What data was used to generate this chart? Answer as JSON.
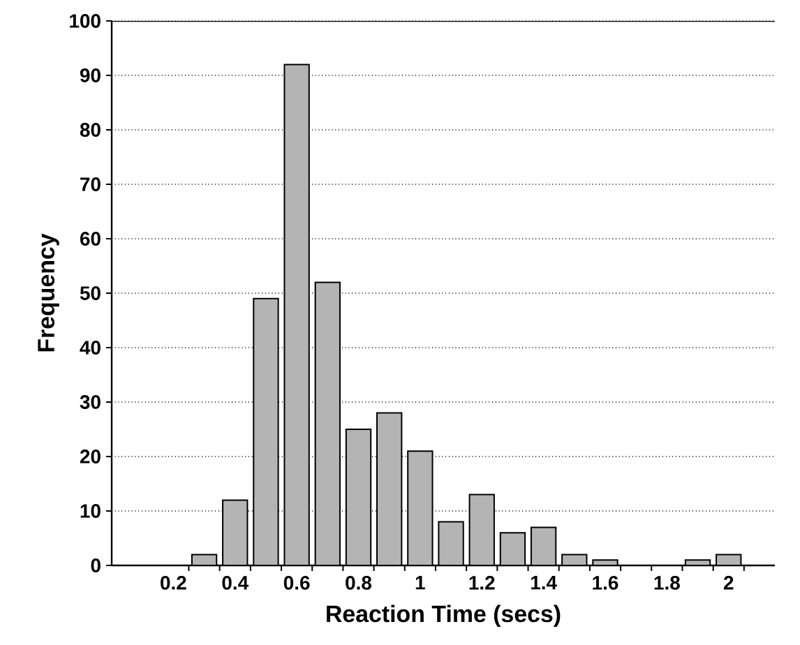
{
  "chart_data": {
    "type": "histogram",
    "xlabel": "Reaction Time (secs)",
    "ylabel": "Frequency",
    "bins": [
      0.25,
      0.35,
      0.45,
      0.55,
      0.65,
      0.75,
      0.85,
      0.95,
      1.05,
      1.15,
      1.25,
      1.35,
      1.45,
      1.55,
      1.65,
      1.75,
      1.85,
      1.95,
      2.05
    ],
    "values": [
      2,
      12,
      49,
      92,
      52,
      25,
      28,
      21,
      8,
      13,
      6,
      7,
      2,
      1,
      0,
      0,
      1,
      2
    ],
    "color": "#b4b4b4",
    "xlim": [
      0,
      2.15
    ],
    "ylim": [
      0,
      100
    ],
    "xticks": [
      0.2,
      0.4,
      0.6,
      0.8,
      1,
      1.2,
      1.4,
      1.6,
      1.8,
      2,
      {
        "value": 0.25,
        "label": null
      },
      {
        "value": 0.35,
        "label": null
      },
      {
        "value": 0.45,
        "label": null
      },
      {
        "value": 0.55,
        "label": null
      },
      {
        "value": 0.65,
        "label": null
      },
      {
        "value": 0.75,
        "label": null
      },
      {
        "value": 0.85,
        "label": null
      },
      {
        "value": 0.95,
        "label": null
      },
      {
        "value": 1.05,
        "label": null
      },
      {
        "value": 1.15,
        "label": null
      },
      {
        "value": 1.25,
        "label": null
      },
      {
        "value": 1.35,
        "label": null
      },
      {
        "value": 1.45,
        "label": null
      },
      {
        "value": 1.55,
        "label": null
      },
      {
        "value": 1.65,
        "label": null
      },
      {
        "value": 1.75,
        "label": null
      },
      {
        "value": 1.85,
        "label": null
      },
      {
        "value": 1.95,
        "label": null
      },
      {
        "value": 2.05,
        "label": null
      }
    ],
    "yticks": [
      0,
      10,
      20,
      30,
      40,
      50,
      60,
      70,
      80,
      90,
      100
    ],
    "grid": "y"
  }
}
